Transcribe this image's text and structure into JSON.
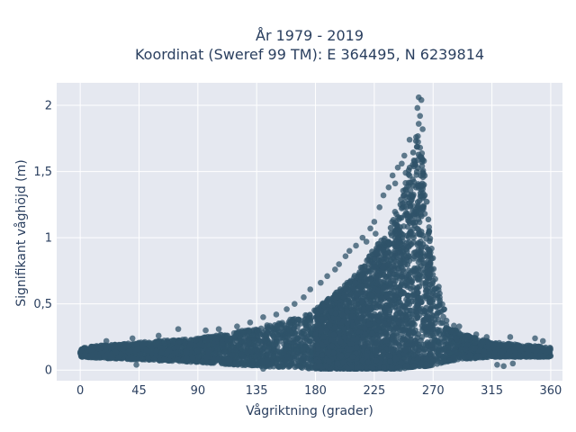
{
  "chart_data": {
    "type": "scatter",
    "title_line1": "År 1979 - 2019",
    "title_line2": "Koordinat (Sweref 99 TM): E 364495, N 6239814",
    "xlabel": "Vågriktning (grader)",
    "ylabel": "Signifikant våghöjd (m)",
    "xlim": [
      -18,
      369
    ],
    "ylim": [
      -0.08,
      2.17
    ],
    "x_ticks": [
      0,
      45,
      90,
      135,
      180,
      225,
      270,
      315,
      360
    ],
    "x_tick_labels": [
      "0",
      "45",
      "90",
      "135",
      "180",
      "225",
      "270",
      "315",
      "360"
    ],
    "y_ticks": [
      0,
      0.5,
      1,
      1.5,
      2
    ],
    "y_tick_labels": [
      "0",
      "0,5",
      "1",
      "1,5",
      "2"
    ],
    "grid": true,
    "marker_color": "#2f5369",
    "plot_bgcolor": "#e5e8f0",
    "envelope": {
      "x": [
        0,
        20,
        45,
        90,
        120,
        135,
        160,
        180,
        200,
        215,
        225,
        235,
        245,
        252,
        258,
        262,
        265,
        270,
        275,
        280,
        290,
        315,
        340,
        360
      ],
      "upper": [
        0.17,
        0.19,
        0.21,
        0.24,
        0.29,
        0.32,
        0.38,
        0.46,
        0.62,
        0.78,
        0.92,
        1.05,
        1.3,
        1.55,
        1.8,
        1.65,
        1.3,
        0.85,
        0.6,
        0.42,
        0.28,
        0.21,
        0.19,
        0.17
      ],
      "lower": [
        0.1,
        0.09,
        0.08,
        0.06,
        0.04,
        0.03,
        0.02,
        0.01,
        0.01,
        0.01,
        0.01,
        0.01,
        0.01,
        0.02,
        0.03,
        0.03,
        0.03,
        0.04,
        0.05,
        0.06,
        0.08,
        0.1,
        0.1,
        0.1
      ]
    },
    "outliers": [
      {
        "x": 259,
        "y": 2.06
      },
      {
        "x": 261,
        "y": 2.04
      },
      {
        "x": 258,
        "y": 1.98
      },
      {
        "x": 260,
        "y": 1.92
      },
      {
        "x": 259,
        "y": 1.86
      },
      {
        "x": 262,
        "y": 1.82
      },
      {
        "x": 257,
        "y": 1.76
      },
      {
        "x": 252,
        "y": 1.74
      },
      {
        "x": 260,
        "y": 1.68
      },
      {
        "x": 248,
        "y": 1.62
      },
      {
        "x": 263,
        "y": 1.58
      },
      {
        "x": 246,
        "y": 1.56
      },
      {
        "x": 243,
        "y": 1.53
      },
      {
        "x": 249,
        "y": 1.49
      },
      {
        "x": 239,
        "y": 1.47
      },
      {
        "x": 241,
        "y": 1.41
      },
      {
        "x": 236,
        "y": 1.38
      },
      {
        "x": 232,
        "y": 1.32
      },
      {
        "x": 229,
        "y": 1.23
      },
      {
        "x": 225,
        "y": 1.12
      },
      {
        "x": 222,
        "y": 1.07
      },
      {
        "x": 226,
        "y": 1.03
      },
      {
        "x": 216,
        "y": 1.0
      },
      {
        "x": 219,
        "y": 0.97
      },
      {
        "x": 211,
        "y": 0.94
      },
      {
        "x": 206,
        "y": 0.9
      },
      {
        "x": 203,
        "y": 0.86
      },
      {
        "x": 198,
        "y": 0.8
      },
      {
        "x": 195,
        "y": 0.76
      },
      {
        "x": 189,
        "y": 0.71
      },
      {
        "x": 184,
        "y": 0.66
      },
      {
        "x": 176,
        "y": 0.61
      },
      {
        "x": 171,
        "y": 0.55
      },
      {
        "x": 164,
        "y": 0.5
      },
      {
        "x": 158,
        "y": 0.46
      },
      {
        "x": 150,
        "y": 0.42
      },
      {
        "x": 140,
        "y": 0.4
      },
      {
        "x": 130,
        "y": 0.36
      },
      {
        "x": 120,
        "y": 0.33
      },
      {
        "x": 106,
        "y": 0.31
      },
      {
        "x": 96,
        "y": 0.3
      },
      {
        "x": 75,
        "y": 0.31
      },
      {
        "x": 60,
        "y": 0.26
      },
      {
        "x": 40,
        "y": 0.24
      },
      {
        "x": 20,
        "y": 0.22
      },
      {
        "x": 290,
        "y": 0.33
      },
      {
        "x": 303,
        "y": 0.27
      },
      {
        "x": 311,
        "y": 0.25
      },
      {
        "x": 329,
        "y": 0.25
      },
      {
        "x": 348,
        "y": 0.24
      },
      {
        "x": 354,
        "y": 0.22
      },
      {
        "x": 319,
        "y": 0.04
      },
      {
        "x": 331,
        "y": 0.05
      },
      {
        "x": 324,
        "y": 0.03
      },
      {
        "x": 43,
        "y": 0.04
      },
      {
        "x": 140,
        "y": 0.01
      }
    ]
  }
}
